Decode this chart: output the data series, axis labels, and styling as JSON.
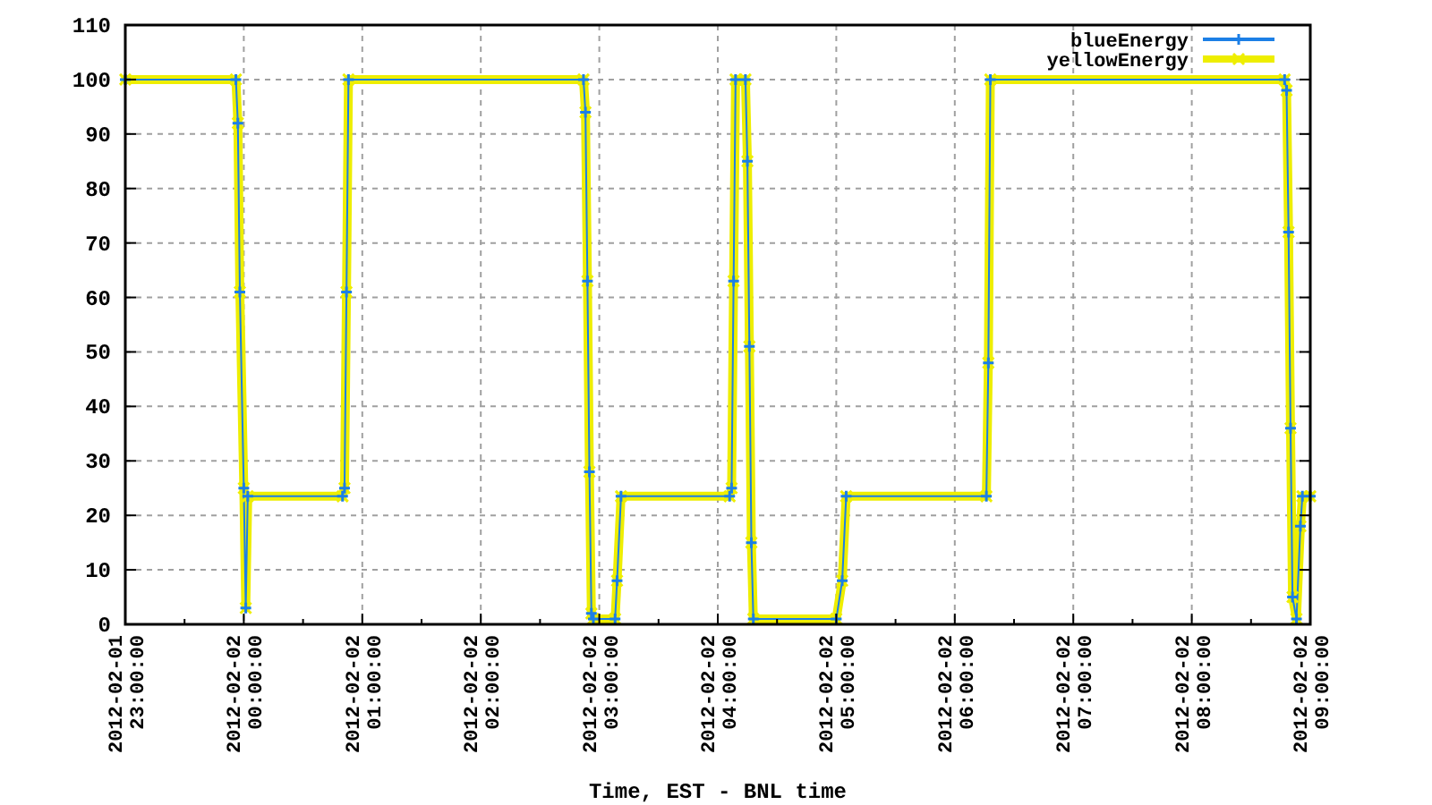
{
  "chart_data": {
    "type": "line",
    "xlabel": "Time, EST - BNL time",
    "x": [
      "2012-02-01T23:00",
      "2012-02-01T23:56",
      "2012-02-01T23:57",
      "2012-02-01T23:58",
      "2012-02-02T00:00",
      "2012-02-02T00:01",
      "2012-02-02T00:02",
      "2012-02-02T00:50",
      "2012-02-02T00:51",
      "2012-02-02T00:52",
      "2012-02-02T00:53",
      "2012-02-02T02:52",
      "2012-02-02T02:53",
      "2012-02-02T02:54",
      "2012-02-02T02:55",
      "2012-02-02T02:56",
      "2012-02-02T02:57",
      "2012-02-02T03:08",
      "2012-02-02T03:09",
      "2012-02-02T03:11",
      "2012-02-02T04:06",
      "2012-02-02T04:07",
      "2012-02-02T04:08",
      "2012-02-02T04:09",
      "2012-02-02T04:14",
      "2012-02-02T04:15",
      "2012-02-02T04:16",
      "2012-02-02T04:17",
      "2012-02-02T04:18",
      "2012-02-02T05:00",
      "2012-02-02T05:03",
      "2012-02-02T05:05",
      "2012-02-02T06:16",
      "2012-02-02T06:17",
      "2012-02-02T06:18",
      "2012-02-02T08:47",
      "2012-02-02T08:48",
      "2012-02-02T08:49",
      "2012-02-02T08:50",
      "2012-02-02T08:51",
      "2012-02-02T08:53",
      "2012-02-02T08:55",
      "2012-02-02T08:56",
      "2012-02-02T09:00"
    ],
    "series": [
      {
        "name": "blueEnergy",
        "color": "#1c7fe6",
        "marker": "cross",
        "values": [
          100,
          100,
          92,
          61,
          25,
          3,
          23.5,
          23.5,
          25,
          61,
          100,
          100,
          94,
          63,
          28,
          2,
          1,
          1,
          8,
          23.5,
          23.5,
          25,
          63,
          100,
          100,
          85,
          51,
          15,
          1,
          1,
          8,
          23.5,
          23.5,
          48,
          100,
          100,
          98,
          72,
          36,
          5,
          1,
          18,
          23.5,
          23.5
        ]
      },
      {
        "name": "yellowEnergy",
        "color": "#eeee00",
        "marker": "x",
        "values": [
          100,
          100,
          92,
          61,
          25,
          3,
          23.5,
          23.5,
          25,
          61,
          100,
          100,
          94,
          63,
          28,
          2,
          1,
          1,
          8,
          23.5,
          23.5,
          25,
          63,
          100,
          100,
          85,
          51,
          15,
          1,
          1,
          8,
          23.5,
          23.5,
          48,
          100,
          100,
          98,
          72,
          36,
          5,
          1,
          18,
          23.5,
          23.5
        ]
      }
    ],
    "xlim": [
      "2012-02-01T23:00",
      "2012-02-02T09:00"
    ],
    "xticks": [
      {
        "value": "2012-02-01T23:00",
        "label": "2012-02-01 23:00:00"
      },
      {
        "value": "2012-02-01T23:30",
        "label": null
      },
      {
        "value": "2012-02-02T00:00",
        "label": "2012-02-02 00:00:00"
      },
      {
        "value": "2012-02-02T00:30",
        "label": null
      },
      {
        "value": "2012-02-02T01:00",
        "label": "2012-02-02 01:00:00"
      },
      {
        "value": "2012-02-02T01:30",
        "label": null
      },
      {
        "value": "2012-02-02T02:00",
        "label": "2012-02-02 02:00:00"
      },
      {
        "value": "2012-02-02T02:30",
        "label": null
      },
      {
        "value": "2012-02-02T03:00",
        "label": "2012-02-02 03:00:00"
      },
      {
        "value": "2012-02-02T03:30",
        "label": null
      },
      {
        "value": "2012-02-02T04:00",
        "label": "2012-02-02 04:00:00"
      },
      {
        "value": "2012-02-02T04:30",
        "label": null
      },
      {
        "value": "2012-02-02T05:00",
        "label": "2012-02-02 05:00:00"
      },
      {
        "value": "2012-02-02T05:30",
        "label": null
      },
      {
        "value": "2012-02-02T06:00",
        "label": "2012-02-02 06:00:00"
      },
      {
        "value": "2012-02-02T06:30",
        "label": null
      },
      {
        "value": "2012-02-02T07:00",
        "label": "2012-02-02 07:00:00"
      },
      {
        "value": "2012-02-02T07:30",
        "label": null
      },
      {
        "value": "2012-02-02T08:00",
        "label": "2012-02-02 08:00:00"
      },
      {
        "value": "2012-02-02T08:30",
        "label": null
      },
      {
        "value": "2012-02-02T09:00",
        "label": "2012-02-02 09:00:00"
      }
    ],
    "ylim": [
      0,
      110
    ],
    "yticks": [
      0,
      10,
      20,
      30,
      40,
      50,
      60,
      70,
      80,
      90,
      100,
      110
    ],
    "grid": true,
    "legend": "top right",
    "line_style": "solid"
  }
}
